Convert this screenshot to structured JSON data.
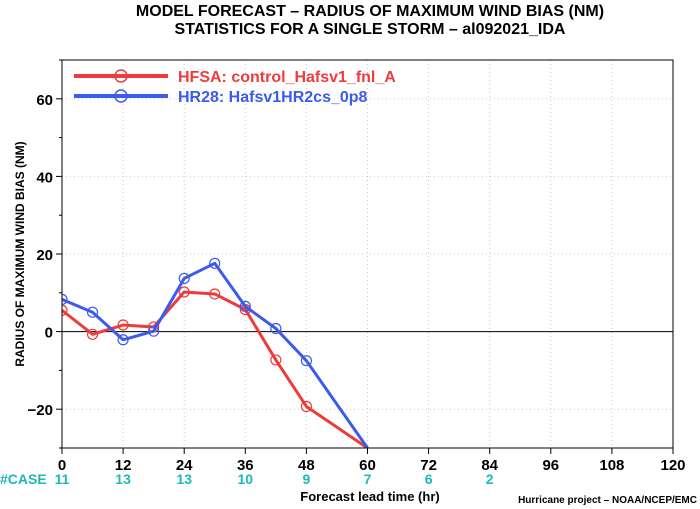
{
  "chart_data": {
    "type": "line",
    "title_line1": "MODEL FORECAST – RADIUS OF MAXIMUM WIND BIAS (NM)",
    "title_line2": "STATISTICS FOR A SINGLE STORM – al092021_IDA",
    "xlabel": "Forecast lead time (hr)",
    "ylabel": "RADIUS OF MAXIMUM WIND BIAS (NM)",
    "xlim": [
      0,
      120
    ],
    "ylim": [
      -30,
      70
    ],
    "xticks": [
      0,
      12,
      24,
      36,
      48,
      60,
      72,
      84,
      96,
      108,
      120
    ],
    "yticks": [
      -20,
      0,
      20,
      40,
      60
    ],
    "grid": true,
    "legend": "top-left",
    "zero_line": true,
    "series": [
      {
        "name": "HFSA: control_Hafsv1_fnl_A",
        "color": "#ee3b3b",
        "x": [
          0,
          6,
          12,
          18,
          24,
          30,
          36,
          42,
          48,
          60
        ],
        "y": [
          5.5,
          -0.7,
          1.7,
          1.2,
          10.2,
          9.7,
          5.7,
          -7.3,
          -19.3,
          -30
        ]
      },
      {
        "name": "HR28: Hafsv1HR2cs_0p8",
        "color": "#3b5bee",
        "x": [
          0,
          6,
          12,
          18,
          24,
          30,
          36,
          42,
          48,
          60
        ],
        "y": [
          8.3,
          5,
          -2.1,
          0.1,
          13.7,
          17.6,
          6.5,
          0.8,
          -7.5,
          -30
        ]
      }
    ],
    "case_label": "#CASE",
    "case_counts": [
      {
        "x": 0,
        "n": "11"
      },
      {
        "x": 12,
        "n": "13"
      },
      {
        "x": 24,
        "n": "13"
      },
      {
        "x": 36,
        "n": "10"
      },
      {
        "x": 48,
        "n": "9"
      },
      {
        "x": 60,
        "n": "7"
      },
      {
        "x": 72,
        "n": "6"
      },
      {
        "x": 84,
        "n": "2"
      }
    ],
    "credit": "Hurricane project – NOAA/NCEP/EMC",
    "colors": {
      "case_counts": "#1fb8b8",
      "grid": "#c8c8c8",
      "axis": "#000000"
    }
  }
}
